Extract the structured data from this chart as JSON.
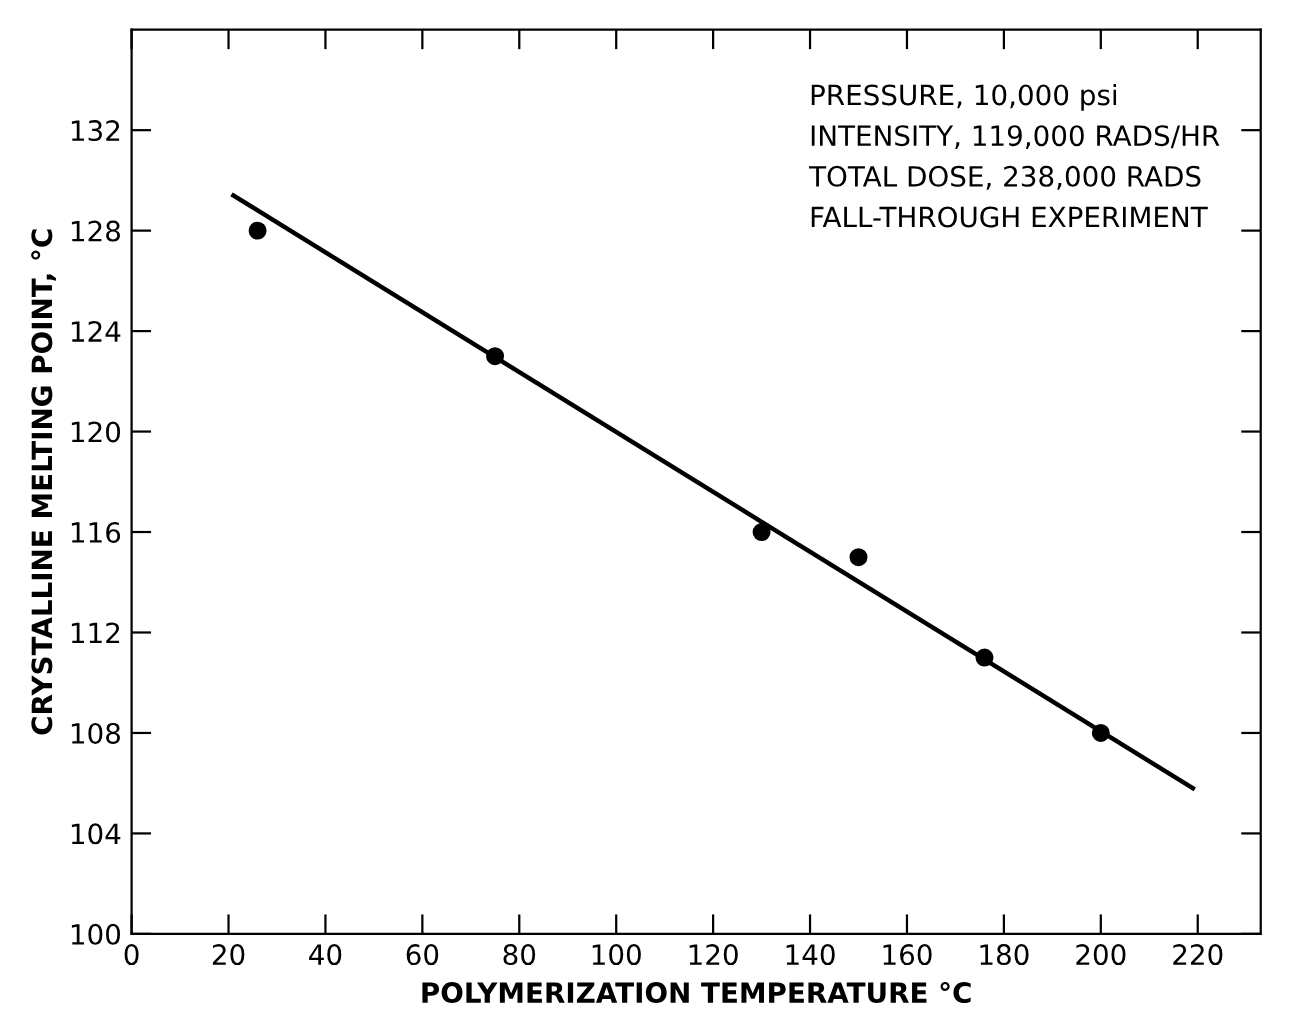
{
  "chart_data": {
    "type": "scatter",
    "xlabel": "POLYMERIZATION TEMPERATURE °C",
    "ylabel": "CRYSTALLINE MELTING POINT, °C",
    "annotations": [
      "PRESSURE, 10,000 psi",
      "INTENSITY, 119,000 RADS/HR",
      "TOTAL DOSE, 238,000 RADS",
      "FALL-THROUGH EXPERIMENT"
    ],
    "series": [
      {
        "color": "#000000",
        "marker": "circle",
        "x": [
          26,
          75,
          130,
          150,
          176,
          200
        ],
        "values": [
          128,
          123,
          116,
          115,
          111,
          108
        ]
      },
      {
        "type": "line",
        "color": "#000000",
        "marker": "none",
        "x": [
          21,
          219
        ],
        "values": [
          129.4,
          105.8
        ]
      }
    ],
    "xlim": [
      0,
      233
    ],
    "ylim": [
      100,
      136
    ],
    "xticks": [
      0,
      20,
      40,
      60,
      80,
      100,
      120,
      140,
      160,
      180,
      200,
      220
    ],
    "yticks": [
      100,
      104,
      108,
      112,
      116,
      120,
      124,
      128,
      132
    ],
    "grid": false,
    "legend": false
  }
}
